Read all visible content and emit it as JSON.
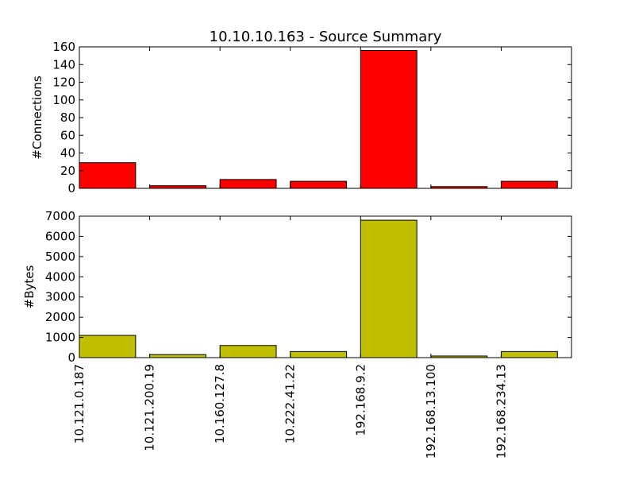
{
  "chart_data": [
    {
      "type": "bar",
      "title": "10.10.10.163 - Source Summary",
      "ylabel": "#Connections",
      "xlabel": "",
      "categories": [
        "10.121.0.187",
        "10.121.200.19",
        "10.160.127.8",
        "10.222.41.22",
        "192.168.9.2",
        "192.168.13.100",
        "192.168.234.13"
      ],
      "values": [
        29,
        3,
        10,
        8,
        156,
        2,
        8
      ],
      "ylim": [
        0,
        160
      ],
      "yticks": [
        0,
        20,
        40,
        60,
        80,
        100,
        120,
        140,
        160
      ],
      "bar_color": "#ff0000",
      "show_xticklabels": false,
      "grid": false
    },
    {
      "type": "bar",
      "title": "",
      "ylabel": "#Bytes",
      "xlabel": "",
      "categories": [
        "10.121.0.187",
        "10.121.200.19",
        "10.160.127.8",
        "10.222.41.22",
        "192.168.9.2",
        "192.168.13.100",
        "192.168.234.13"
      ],
      "values": [
        1100,
        150,
        600,
        300,
        6800,
        80,
        300
      ],
      "ylim": [
        0,
        7000
      ],
      "yticks": [
        0,
        1000,
        2000,
        3000,
        4000,
        5000,
        6000,
        7000
      ],
      "bar_color": "#bfbf00",
      "show_xticklabels": true,
      "grid": false
    }
  ]
}
